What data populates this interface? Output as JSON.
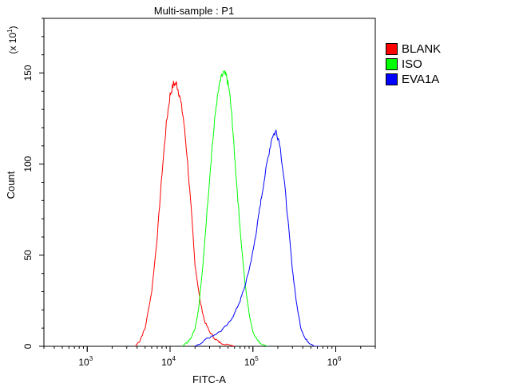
{
  "chart_data": {
    "type": "line",
    "title": "Multi-sample : P1",
    "xlabel": "FITC-A",
    "ylabel": "Count",
    "y_multiplier_label": {
      "prefix": "(x 10",
      "exponent": "1",
      "suffix": ")"
    },
    "x_scale": "log",
    "xlim": [
      300,
      3000000
    ],
    "ylim": [
      0,
      180
    ],
    "x_ticks": [
      {
        "base": "10",
        "exp": "3",
        "value": 1000
      },
      {
        "base": "10",
        "exp": "4",
        "value": 10000
      },
      {
        "base": "10",
        "exp": "5",
        "value": 100000
      },
      {
        "base": "10",
        "exp": "6",
        "value": 1000000
      }
    ],
    "y_ticks": [
      {
        "label": "0",
        "value": 0
      },
      {
        "label": "50",
        "value": 50
      },
      {
        "label": "100",
        "value": 100
      },
      {
        "label": "150",
        "value": 150
      }
    ],
    "legend_position": "right",
    "series": [
      {
        "name": "BLANK",
        "color": "#ff0000",
        "x": [
          3800,
          4300,
          5000,
          6000,
          7000,
          8000,
          9000,
          10000,
          11000,
          12000,
          13000,
          14500,
          16000,
          18000,
          20000,
          23000,
          26000,
          30000,
          35000,
          40000,
          50000,
          60000
        ],
        "y": [
          0,
          3,
          10,
          30,
          60,
          95,
          122,
          138,
          144,
          144,
          138,
          125,
          105,
          75,
          45,
          25,
          14,
          8,
          4,
          2,
          1,
          0
        ]
      },
      {
        "name": "ISO",
        "color": "#00ff00",
        "x": [
          14000,
          16000,
          18000,
          20000,
          22000,
          25000,
          28000,
          32000,
          36000,
          40000,
          44000,
          48000,
          52000,
          56000,
          60000,
          66000,
          72000,
          80000,
          90000,
          100000,
          115000,
          130000,
          150000
        ],
        "y": [
          0,
          2,
          5,
          10,
          20,
          45,
          75,
          108,
          132,
          145,
          150,
          148,
          140,
          125,
          105,
          80,
          58,
          35,
          18,
          8,
          3,
          1,
          0
        ]
      },
      {
        "name": "EVA1A",
        "color": "#0000ff",
        "x": [
          20000,
          30000,
          40000,
          50000,
          60000,
          70000,
          80000,
          90000,
          100000,
          110000,
          120000,
          130000,
          150000,
          170000,
          190000,
          210000,
          240000,
          270000,
          300000,
          340000,
          380000,
          430000,
          480000,
          550000,
          650000
        ],
        "y": [
          0,
          5,
          8,
          12,
          18,
          25,
          33,
          42,
          52,
          63,
          75,
          85,
          102,
          115,
          118,
          112,
          90,
          65,
          42,
          22,
          10,
          4,
          2,
          0,
          0
        ]
      }
    ]
  }
}
